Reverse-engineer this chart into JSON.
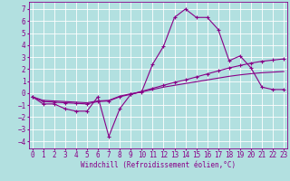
{
  "xlabel": "Windchill (Refroidissement éolien,°C)",
  "background_color": "#b2e0e0",
  "grid_color": "#ffffff",
  "line_color": "#880088",
  "x_ticks": [
    0,
    1,
    2,
    3,
    4,
    5,
    6,
    7,
    8,
    9,
    10,
    11,
    12,
    13,
    14,
    15,
    16,
    17,
    18,
    19,
    20,
    21,
    22,
    23
  ],
  "y_ticks": [
    -4,
    -3,
    -2,
    -1,
    0,
    1,
    2,
    3,
    4,
    5,
    6,
    7
  ],
  "xlim": [
    -0.3,
    23.3
  ],
  "ylim": [
    -4.6,
    7.6
  ],
  "series1_x": [
    0,
    1,
    2,
    3,
    4,
    5,
    6,
    7,
    8,
    9,
    10,
    11,
    12,
    13,
    14,
    15,
    16,
    17,
    18,
    19,
    20,
    21,
    22,
    23
  ],
  "series1_y": [
    -0.3,
    -0.9,
    -0.9,
    -1.3,
    -1.5,
    -1.5,
    -0.3,
    -3.6,
    -1.3,
    -0.1,
    0.1,
    2.4,
    3.9,
    6.3,
    7.0,
    6.3,
    6.3,
    5.3,
    2.7,
    3.1,
    2.1,
    0.5,
    0.3,
    0.3
  ],
  "series2_x": [
    0,
    1,
    2,
    3,
    4,
    5,
    6,
    7,
    8,
    9,
    10,
    11,
    12,
    13,
    14,
    15,
    16,
    17,
    18,
    19,
    20,
    21,
    22,
    23
  ],
  "series2_y": [
    -0.3,
    -0.7,
    -0.75,
    -0.8,
    -0.85,
    -0.9,
    -0.7,
    -0.65,
    -0.3,
    -0.1,
    0.15,
    0.4,
    0.65,
    0.9,
    1.1,
    1.35,
    1.6,
    1.85,
    2.1,
    2.3,
    2.5,
    2.65,
    2.75,
    2.85
  ],
  "series3_x": [
    0,
    1,
    2,
    3,
    4,
    5,
    6,
    7,
    8,
    9,
    10,
    11,
    12,
    13,
    14,
    15,
    16,
    17,
    18,
    19,
    20,
    21,
    22,
    23
  ],
  "series3_y": [
    -0.3,
    -0.6,
    -0.65,
    -0.7,
    -0.75,
    -0.8,
    -0.65,
    -0.6,
    -0.25,
    -0.05,
    0.1,
    0.3,
    0.5,
    0.65,
    0.8,
    0.95,
    1.1,
    1.25,
    1.4,
    1.52,
    1.62,
    1.7,
    1.75,
    1.8
  ],
  "xlabel_fontsize": 5.5,
  "tick_fontsize": 5.5
}
